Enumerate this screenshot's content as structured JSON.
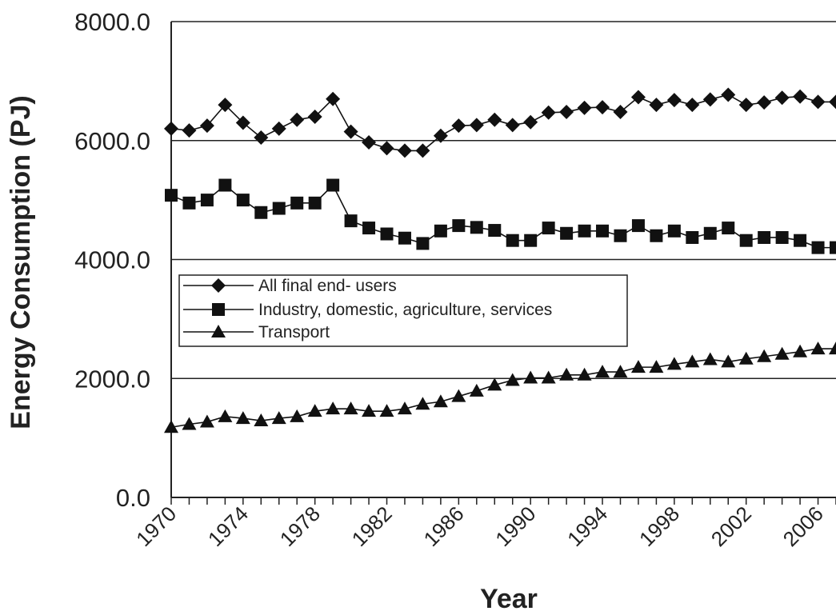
{
  "chart_data": {
    "type": "line",
    "ylabel": "Energy Consumption (PJ)",
    "xlabel": "Year",
    "ylim": [
      0,
      8000
    ],
    "yticks": [
      "0.0",
      "2000.0",
      "4000.0",
      "6000.0",
      "8000.0"
    ],
    "xticks": [
      "1970",
      "1974",
      "1978",
      "1982",
      "1986",
      "1990",
      "1994",
      "1998",
      "2002",
      "2006"
    ],
    "grid": "horizontal",
    "legend_position": "center-left",
    "x": [
      1970,
      1971,
      1972,
      1973,
      1974,
      1975,
      1976,
      1977,
      1978,
      1979,
      1980,
      1981,
      1982,
      1983,
      1984,
      1985,
      1986,
      1987,
      1988,
      1989,
      1990,
      1991,
      1992,
      1993,
      1994,
      1995,
      1996,
      1997,
      1998,
      1999,
      2000,
      2001,
      2002,
      2003,
      2004,
      2005,
      2006,
      2007
    ],
    "series": [
      {
        "name": "All final end- users",
        "marker": "diamond",
        "values": [
          6200,
          6170,
          6250,
          6600,
          6300,
          6050,
          6200,
          6350,
          6400,
          6700,
          6150,
          5970,
          5870,
          5830,
          5830,
          6080,
          6250,
          6260,
          6350,
          6260,
          6310,
          6470,
          6480,
          6550,
          6560,
          6480,
          6730,
          6600,
          6680,
          6600,
          6690,
          6770,
          6600,
          6640,
          6720,
          6740,
          6650,
          6650
        ]
      },
      {
        "name": "Industry, domestic, agriculture, services",
        "marker": "square",
        "values": [
          5080,
          4950,
          5000,
          5250,
          5000,
          4790,
          4860,
          4950,
          4950,
          5250,
          4650,
          4530,
          4430,
          4360,
          4270,
          4480,
          4570,
          4540,
          4490,
          4320,
          4320,
          4530,
          4440,
          4480,
          4480,
          4400,
          4570,
          4400,
          4480,
          4370,
          4440,
          4530,
          4320,
          4370,
          4370,
          4320,
          4200,
          4200
        ]
      },
      {
        "name": "Transport",
        "marker": "triangle",
        "values": [
          1180,
          1230,
          1270,
          1360,
          1330,
          1290,
          1330,
          1360,
          1450,
          1490,
          1490,
          1450,
          1450,
          1490,
          1570,
          1610,
          1700,
          1790,
          1890,
          1970,
          2010,
          2010,
          2060,
          2060,
          2110,
          2110,
          2190,
          2190,
          2240,
          2280,
          2320,
          2280,
          2330,
          2370,
          2410,
          2450,
          2500,
          2500
        ]
      }
    ]
  }
}
